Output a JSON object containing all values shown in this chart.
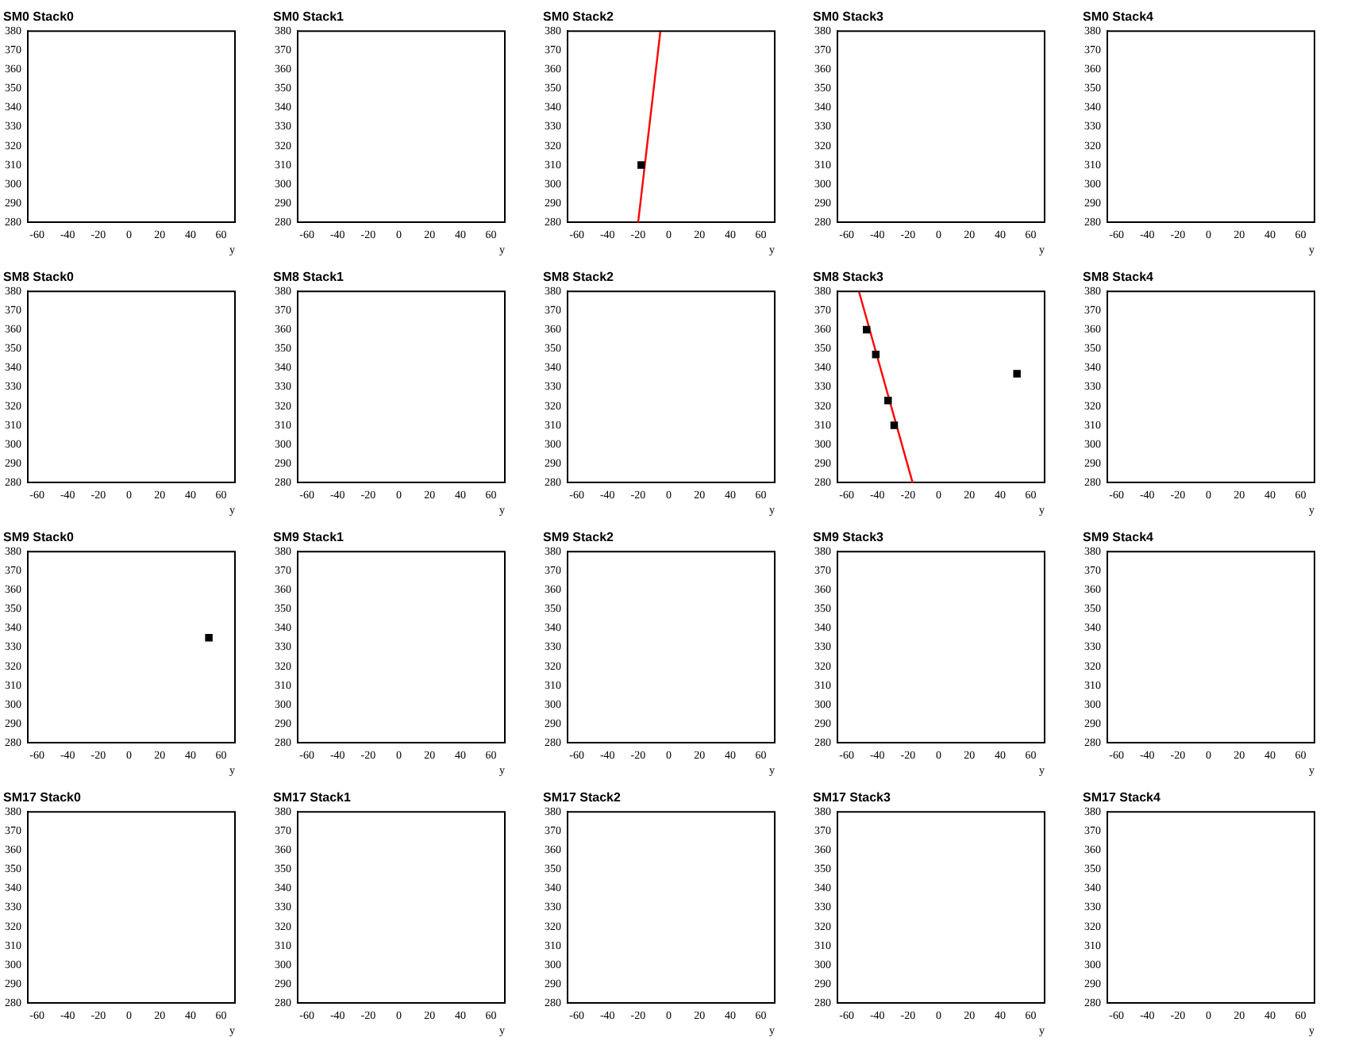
{
  "chart_data": [
    {
      "type": "scatter",
      "title": "SM0 Stack0",
      "xlabel": "y",
      "xlim": [
        -66,
        69
      ],
      "ylim": [
        280,
        380
      ],
      "xticks": [
        -60,
        -40,
        -20,
        0,
        20,
        40,
        60
      ],
      "yticks": [
        280,
        290,
        300,
        310,
        320,
        330,
        340,
        350,
        360,
        370,
        380
      ]
    },
    {
      "type": "scatter",
      "title": "SM0 Stack1",
      "xlabel": "y",
      "xlim": [
        -66,
        69
      ],
      "ylim": [
        280,
        380
      ],
      "xticks": [
        -60,
        -40,
        -20,
        0,
        20,
        40,
        60
      ],
      "yticks": [
        280,
        290,
        300,
        310,
        320,
        330,
        340,
        350,
        360,
        370,
        380
      ]
    },
    {
      "type": "scatter",
      "title": "SM0 Stack2",
      "xlabel": "y",
      "xlim": [
        -66,
        69
      ],
      "ylim": [
        280,
        380
      ],
      "xticks": [
        -60,
        -40,
        -20,
        0,
        20,
        40,
        60
      ],
      "yticks": [
        280,
        290,
        300,
        310,
        320,
        330,
        340,
        350,
        360,
        370,
        380
      ],
      "series": [
        {
          "type": "scatter",
          "marker": "square",
          "color": "#000000",
          "x": [
            -18
          ],
          "values": [
            310
          ]
        },
        {
          "type": "line",
          "marker": "none",
          "color": "#ff0000",
          "x": [
            -20,
            -5.5
          ],
          "values": [
            280,
            380
          ]
        }
      ]
    },
    {
      "type": "scatter",
      "title": "SM0 Stack3",
      "xlabel": "y",
      "xlim": [
        -66,
        69
      ],
      "ylim": [
        280,
        380
      ],
      "xticks": [
        -60,
        -40,
        -20,
        0,
        20,
        40,
        60
      ],
      "yticks": [
        280,
        290,
        300,
        310,
        320,
        330,
        340,
        350,
        360,
        370,
        380
      ]
    },
    {
      "type": "scatter",
      "title": "SM0 Stack4",
      "xlabel": "y",
      "xlim": [
        -66,
        69
      ],
      "ylim": [
        280,
        380
      ],
      "xticks": [
        -60,
        -40,
        -20,
        0,
        20,
        40,
        60
      ],
      "yticks": [
        280,
        290,
        300,
        310,
        320,
        330,
        340,
        350,
        360,
        370,
        380
      ]
    },
    {
      "type": "scatter",
      "title": "SM8 Stack0",
      "xlabel": "y",
      "xlim": [
        -66,
        69
      ],
      "ylim": [
        280,
        380
      ],
      "xticks": [
        -60,
        -40,
        -20,
        0,
        20,
        40,
        60
      ],
      "yticks": [
        280,
        290,
        300,
        310,
        320,
        330,
        340,
        350,
        360,
        370,
        380
      ]
    },
    {
      "type": "scatter",
      "title": "SM8 Stack1",
      "xlabel": "y",
      "xlim": [
        -66,
        69
      ],
      "ylim": [
        280,
        380
      ],
      "xticks": [
        -60,
        -40,
        -20,
        0,
        20,
        40,
        60
      ],
      "yticks": [
        280,
        290,
        300,
        310,
        320,
        330,
        340,
        350,
        360,
        370,
        380
      ]
    },
    {
      "type": "scatter",
      "title": "SM8 Stack2",
      "xlabel": "y",
      "xlim": [
        -66,
        69
      ],
      "ylim": [
        280,
        380
      ],
      "xticks": [
        -60,
        -40,
        -20,
        0,
        20,
        40,
        60
      ],
      "yticks": [
        280,
        290,
        300,
        310,
        320,
        330,
        340,
        350,
        360,
        370,
        380
      ]
    },
    {
      "type": "scatter",
      "title": "SM8 Stack3",
      "xlabel": "y",
      "xlim": [
        -66,
        69
      ],
      "ylim": [
        280,
        380
      ],
      "xticks": [
        -60,
        -40,
        -20,
        0,
        20,
        40,
        60
      ],
      "yticks": [
        280,
        290,
        300,
        310,
        320,
        330,
        340,
        350,
        360,
        370,
        380
      ],
      "series": [
        {
          "type": "scatter",
          "marker": "square",
          "color": "#000000",
          "x": [
            -47,
            -41,
            -33,
            -29,
            51
          ],
          "values": [
            360,
            347,
            323,
            310,
            337
          ]
        },
        {
          "type": "line",
          "marker": "none",
          "color": "#ff0000",
          "x": [
            -52,
            -17
          ],
          "values": [
            380,
            280
          ]
        }
      ]
    },
    {
      "type": "scatter",
      "title": "SM8 Stack4",
      "xlabel": "y",
      "xlim": [
        -66,
        69
      ],
      "ylim": [
        280,
        380
      ],
      "xticks": [
        -60,
        -40,
        -20,
        0,
        20,
        40,
        60
      ],
      "yticks": [
        280,
        290,
        300,
        310,
        320,
        330,
        340,
        350,
        360,
        370,
        380
      ]
    },
    {
      "type": "scatter",
      "title": "SM9 Stack0",
      "xlabel": "y",
      "xlim": [
        -66,
        69
      ],
      "ylim": [
        280,
        380
      ],
      "xticks": [
        -60,
        -40,
        -20,
        0,
        20,
        40,
        60
      ],
      "yticks": [
        280,
        290,
        300,
        310,
        320,
        330,
        340,
        350,
        360,
        370,
        380
      ],
      "series": [
        {
          "type": "scatter",
          "marker": "square",
          "color": "#000000",
          "x": [
            52
          ],
          "values": [
            335
          ]
        }
      ]
    },
    {
      "type": "scatter",
      "title": "SM9 Stack1",
      "xlabel": "y",
      "xlim": [
        -66,
        69
      ],
      "ylim": [
        280,
        380
      ],
      "xticks": [
        -60,
        -40,
        -20,
        0,
        20,
        40,
        60
      ],
      "yticks": [
        280,
        290,
        300,
        310,
        320,
        330,
        340,
        350,
        360,
        370,
        380
      ]
    },
    {
      "type": "scatter",
      "title": "SM9 Stack2",
      "xlabel": "y",
      "xlim": [
        -66,
        69
      ],
      "ylim": [
        280,
        380
      ],
      "xticks": [
        -60,
        -40,
        -20,
        0,
        20,
        40,
        60
      ],
      "yticks": [
        280,
        290,
        300,
        310,
        320,
        330,
        340,
        350,
        360,
        370,
        380
      ]
    },
    {
      "type": "scatter",
      "title": "SM9 Stack3",
      "xlabel": "y",
      "xlim": [
        -66,
        69
      ],
      "ylim": [
        280,
        380
      ],
      "xticks": [
        -60,
        -40,
        -20,
        0,
        20,
        40,
        60
      ],
      "yticks": [
        280,
        290,
        300,
        310,
        320,
        330,
        340,
        350,
        360,
        370,
        380
      ]
    },
    {
      "type": "scatter",
      "title": "SM9 Stack4",
      "xlabel": "y",
      "xlim": [
        -66,
        69
      ],
      "ylim": [
        280,
        380
      ],
      "xticks": [
        -60,
        -40,
        -20,
        0,
        20,
        40,
        60
      ],
      "yticks": [
        280,
        290,
        300,
        310,
        320,
        330,
        340,
        350,
        360,
        370,
        380
      ]
    },
    {
      "type": "scatter",
      "title": "SM17 Stack0",
      "xlabel": "y",
      "xlim": [
        -66,
        69
      ],
      "ylim": [
        280,
        380
      ],
      "xticks": [
        -60,
        -40,
        -20,
        0,
        20,
        40,
        60
      ],
      "yticks": [
        280,
        290,
        300,
        310,
        320,
        330,
        340,
        350,
        360,
        370,
        380
      ]
    },
    {
      "type": "scatter",
      "title": "SM17 Stack1",
      "xlabel": "y",
      "xlim": [
        -66,
        69
      ],
      "ylim": [
        280,
        380
      ],
      "xticks": [
        -60,
        -40,
        -20,
        0,
        20,
        40,
        60
      ],
      "yticks": [
        280,
        290,
        300,
        310,
        320,
        330,
        340,
        350,
        360,
        370,
        380
      ]
    },
    {
      "type": "scatter",
      "title": "SM17 Stack2",
      "xlabel": "y",
      "xlim": [
        -66,
        69
      ],
      "ylim": [
        280,
        380
      ],
      "xticks": [
        -60,
        -40,
        -20,
        0,
        20,
        40,
        60
      ],
      "yticks": [
        280,
        290,
        300,
        310,
        320,
        330,
        340,
        350,
        360,
        370,
        380
      ]
    },
    {
      "type": "scatter",
      "title": "SM17 Stack3",
      "xlabel": "y",
      "xlim": [
        -66,
        69
      ],
      "ylim": [
        280,
        380
      ],
      "xticks": [
        -60,
        -40,
        -20,
        0,
        20,
        40,
        60
      ],
      "yticks": [
        280,
        290,
        300,
        310,
        320,
        330,
        340,
        350,
        360,
        370,
        380
      ]
    },
    {
      "type": "scatter",
      "title": "SM17 Stack4",
      "xlabel": "y",
      "xlim": [
        -66,
        69
      ],
      "ylim": [
        280,
        380
      ],
      "xticks": [
        -60,
        -40,
        -20,
        0,
        20,
        40,
        60
      ],
      "yticks": [
        280,
        290,
        300,
        310,
        320,
        330,
        340,
        350,
        360,
        370,
        380
      ]
    }
  ]
}
